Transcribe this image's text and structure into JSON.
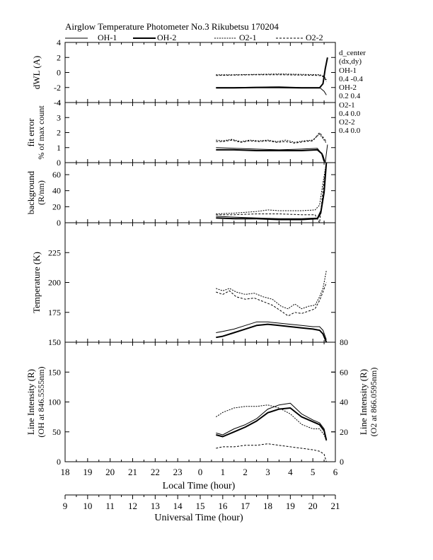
{
  "figure": {
    "title": "Airglow Temperature Photometer No.3  Rikubetsu    170204",
    "legend": [
      "OH-1",
      "OH-2",
      "O2-1",
      "O2-2"
    ],
    "dcenter": {
      "header1": "d_center",
      "header2": "(dx,dy)",
      "oh1_label": "OH-1",
      "oh1_val": "0.4   -0.4",
      "oh2_label": "OH-2",
      "oh2_val": "0.2   0.4",
      "o21_label": "O2-1",
      "o21_val": "0.4   0.0",
      "o22_label": "O2-2",
      "o22_val": "0.4   0.0"
    },
    "local_time_label": "Local Time (hour)",
    "universal_time_label": "Universal Time (hour)",
    "local_ticks": [
      "18",
      "19",
      "20",
      "21",
      "22",
      "23",
      "0",
      "1",
      "2",
      "3",
      "4",
      "5",
      "6"
    ],
    "universal_ticks": [
      "9",
      "10",
      "11",
      "12",
      "13",
      "14",
      "15",
      "16",
      "17",
      "18",
      "19",
      "20",
      "21"
    ]
  },
  "chart_data": [
    {
      "type": "line",
      "panel": "dwl",
      "ylabel": "dWL (A)",
      "ylim": [
        -4,
        4
      ],
      "yticks": [
        "4",
        "2",
        "0",
        "-2",
        "-4"
      ],
      "series": [
        {
          "name": "OH-1",
          "x": [
            0.7,
            1.5,
            2.5,
            3.5,
            4.5,
            5.3,
            5.5,
            5.6
          ],
          "y": [
            -2.0,
            -2.0,
            -1.95,
            -1.9,
            -2.0,
            -2.0,
            -2.5,
            -3.0
          ]
        },
        {
          "name": "OH-2",
          "x": [
            0.7,
            1.5,
            2.5,
            3.5,
            4.5,
            5.3,
            5.45,
            5.55,
            5.65
          ],
          "y": [
            -2.05,
            -2.05,
            -2.0,
            -2.0,
            -2.05,
            -2.05,
            -1.5,
            0.5,
            2.0
          ]
        },
        {
          "name": "O2-1",
          "x": [
            0.7,
            1.5,
            2.5,
            3.5,
            4.5,
            5.3,
            5.5,
            5.6
          ],
          "y": [
            -0.3,
            -0.3,
            -0.25,
            -0.2,
            -0.25,
            -0.3,
            -0.5,
            -1.0
          ]
        },
        {
          "name": "O2-2",
          "x": [
            0.7,
            1.5,
            2.5,
            3.5,
            4.5,
            5.3,
            5.5,
            5.6
          ],
          "y": [
            -0.4,
            -0.35,
            -0.3,
            -0.3,
            -0.35,
            -0.4,
            -0.6,
            -1.2
          ]
        }
      ]
    },
    {
      "type": "line",
      "panel": "fit_error",
      "ylabel": "fit error",
      "ylabel2": "% of max count",
      "ylim": [
        0,
        4
      ],
      "yticks": [
        "4",
        "3",
        "2",
        "1",
        "0"
      ],
      "series": [
        {
          "name": "OH-1",
          "x": [
            0.7,
            1.5,
            2.5,
            3.5,
            4.5,
            5.2,
            5.45,
            5.55,
            5.65
          ],
          "y": [
            1.0,
            0.95,
            0.9,
            0.85,
            0.9,
            0.95,
            0.5,
            0.0,
            1.2
          ]
        },
        {
          "name": "OH-2",
          "x": [
            0.7,
            1.5,
            2.5,
            3.5,
            4.5,
            5.2,
            5.4,
            5.5
          ],
          "y": [
            0.85,
            0.85,
            0.8,
            0.8,
            0.8,
            0.85,
            0.6,
            0.1
          ]
        },
        {
          "name": "O2-1",
          "x": [
            0.7,
            1.0,
            1.4,
            1.8,
            2.2,
            2.6,
            3.0,
            3.4,
            3.8,
            4.2,
            4.6,
            5.0,
            5.3,
            5.45,
            5.6
          ],
          "y": [
            1.5,
            1.45,
            1.55,
            1.4,
            1.5,
            1.45,
            1.5,
            1.4,
            1.5,
            1.35,
            1.45,
            1.5,
            1.9,
            1.6,
            1.3
          ]
        },
        {
          "name": "O2-2",
          "x": [
            0.7,
            1.0,
            1.4,
            1.8,
            2.2,
            2.6,
            3.0,
            3.4,
            3.8,
            4.2,
            4.6,
            5.0,
            5.3,
            5.45,
            5.6
          ],
          "y": [
            1.4,
            1.4,
            1.5,
            1.35,
            1.45,
            1.4,
            1.45,
            1.35,
            1.4,
            1.3,
            1.4,
            1.45,
            2.0,
            1.7,
            1.4
          ]
        }
      ]
    },
    {
      "type": "line",
      "panel": "background",
      "ylabel": "background",
      "ylabel2": "(R/nm)",
      "ylim": [
        0,
        75
      ],
      "yticks": [
        "60",
        "40",
        "20",
        "0"
      ],
      "series": [
        {
          "name": "OH-1",
          "x": [
            0.7,
            1.5,
            2.5,
            3.5,
            4.5,
            5.2,
            5.35,
            5.5,
            5.6
          ],
          "y": [
            8,
            7,
            6,
            5,
            5,
            6,
            15,
            40,
            75
          ]
        },
        {
          "name": "OH-2",
          "x": [
            0.7,
            1.5,
            2.5,
            3.5,
            4.5,
            5.2,
            5.35,
            5.5,
            5.6
          ],
          "y": [
            6,
            5,
            5,
            4,
            4,
            5,
            12,
            38,
            75
          ]
        },
        {
          "name": "O2-1",
          "x": [
            0.7,
            1.5,
            2.5,
            3.0,
            3.5,
            4.5,
            5.1,
            5.3,
            5.45,
            5.6
          ],
          "y": [
            11,
            12,
            14,
            16,
            15,
            15,
            16,
            22,
            50,
            75
          ]
        },
        {
          "name": "O2-2",
          "x": [
            0.7,
            1.5,
            2.5,
            3.5,
            4.5,
            5.1,
            5.2,
            5.3,
            5.45,
            5.6
          ],
          "y": [
            10,
            10,
            11,
            11,
            10,
            10,
            5,
            0,
            40,
            75
          ]
        }
      ]
    },
    {
      "type": "line",
      "panel": "temperature",
      "ylabel": "Temperature (K)",
      "ylim": [
        150,
        250
      ],
      "yticks": [
        "225",
        "200",
        "175",
        "150"
      ],
      "series": [
        {
          "name": "OH-1",
          "x": [
            0.7,
            1.0,
            1.5,
            2.0,
            2.5,
            3.0,
            3.5,
            4.0,
            4.5,
            5.0,
            5.3,
            5.45,
            5.6
          ],
          "y": [
            158,
            159,
            161,
            164,
            167,
            167,
            166,
            165,
            164,
            163,
            163,
            160,
            152
          ]
        },
        {
          "name": "OH-2",
          "x": [
            0.7,
            1.0,
            1.5,
            2.0,
            2.5,
            3.0,
            3.5,
            4.0,
            4.5,
            5.0,
            5.3,
            5.45,
            5.6
          ],
          "y": [
            154,
            155,
            158,
            161,
            164,
            165,
            164,
            163,
            162,
            161,
            160,
            157,
            150
          ]
        },
        {
          "name": "O2-1",
          "x": [
            0.7,
            1.0,
            1.3,
            1.6,
            2.0,
            2.4,
            2.8,
            3.2,
            3.6,
            3.9,
            4.2,
            4.5,
            4.8,
            5.1,
            5.3,
            5.45,
            5.6
          ],
          "y": [
            195,
            193,
            195,
            192,
            190,
            191,
            188,
            186,
            180,
            178,
            182,
            178,
            180,
            181,
            188,
            195,
            210
          ]
        },
        {
          "name": "O2-2",
          "x": [
            0.7,
            1.0,
            1.3,
            1.6,
            2.0,
            2.4,
            2.8,
            3.2,
            3.6,
            3.9,
            4.2,
            4.5,
            4.8,
            5.1,
            5.3,
            5.45,
            5.6
          ],
          "y": [
            192,
            190,
            193,
            188,
            186,
            187,
            184,
            181,
            176,
            172,
            175,
            174,
            176,
            178,
            185,
            192,
            200
          ]
        }
      ]
    },
    {
      "type": "line",
      "panel": "intensity",
      "ylabel": "Line Intensity (R)",
      "ylabel2": "(OH at 846.5555nm)",
      "y2label": "Line Intensity (R)",
      "y2label2": "(O2 at 866.0595nm)",
      "ylim": [
        0,
        200
      ],
      "yticks": [
        "150",
        "100",
        "50",
        "0"
      ],
      "y2lim": [
        0,
        80
      ],
      "y2ticks": [
        "80",
        "60",
        "40",
        "20",
        "0"
      ],
      "series": [
        {
          "name": "OH-1",
          "axis": "left",
          "x": [
            0.7,
            1.0,
            1.5,
            2.0,
            2.5,
            3.0,
            3.5,
            4.0,
            4.5,
            5.0,
            5.3,
            5.5,
            5.6
          ],
          "y": [
            48,
            45,
            55,
            62,
            72,
            88,
            95,
            98,
            80,
            70,
            65,
            55,
            38
          ]
        },
        {
          "name": "OH-2",
          "axis": "left",
          "x": [
            0.7,
            1.0,
            1.5,
            2.0,
            2.5,
            3.0,
            3.5,
            4.0,
            4.5,
            5.0,
            5.3,
            5.5,
            5.6
          ],
          "y": [
            45,
            42,
            50,
            58,
            68,
            82,
            88,
            90,
            75,
            67,
            62,
            52,
            36
          ]
        },
        {
          "name": "O2-1",
          "axis": "right",
          "x": [
            0.7,
            1.0,
            1.5,
            2.0,
            2.5,
            3.0,
            3.5,
            4.0,
            4.5,
            5.0,
            5.3,
            5.5,
            5.6
          ],
          "y": [
            30,
            33,
            36,
            37,
            37,
            38,
            36,
            32,
            25,
            22,
            22,
            18,
            14
          ]
        },
        {
          "name": "O2-2",
          "axis": "right",
          "x": [
            0.7,
            1.0,
            1.5,
            2.0,
            2.5,
            3.0,
            3.5,
            4.0,
            4.5,
            5.0,
            5.3,
            5.5,
            5.6
          ],
          "y": [
            9,
            10,
            10,
            11,
            11,
            12,
            11,
            10,
            9,
            8,
            7,
            5,
            0
          ]
        }
      ]
    }
  ]
}
